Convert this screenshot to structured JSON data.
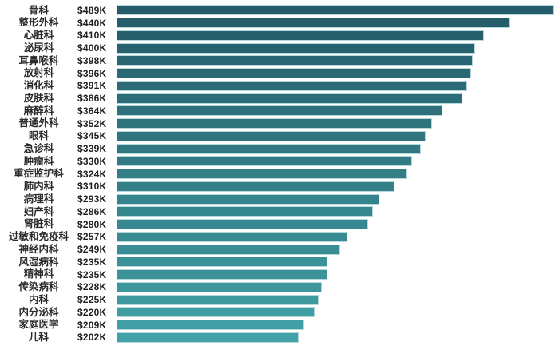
{
  "page": {
    "background_color": "#ffffff"
  },
  "chart_data": {
    "type": "bar",
    "orientation": "horizontal",
    "title": "",
    "xlabel": "",
    "ylabel": "",
    "xlim": [
      0,
      489
    ],
    "grid": false,
    "legend": false,
    "categories": [
      "骨科",
      "整形外科",
      "心脏科",
      "泌尿科",
      "耳鼻喉科",
      "放射科",
      "消化科",
      "皮肤科",
      "麻醉科",
      "普通外科",
      "眼科",
      "急诊科",
      "肿瘤科",
      "重症监护科",
      "肺内科",
      "病理科",
      "妇产科",
      "肾脏科",
      "过敏和免疫科",
      "神经内科",
      "风湿病科",
      "精神科",
      "传染病科",
      "内科",
      "内分泌科",
      "家庭医学",
      "儿科"
    ],
    "values": [
      489,
      440,
      410,
      400,
      398,
      396,
      391,
      386,
      364,
      352,
      345,
      339,
      330,
      324,
      310,
      293,
      286,
      280,
      257,
      249,
      235,
      235,
      228,
      225,
      220,
      209,
      202
    ],
    "value_labels": [
      "$489K",
      "$440K",
      "$410K",
      "$400K",
      "$398K",
      "$396K",
      "$391K",
      "$386K",
      "$364K",
      "$352K",
      "$345K",
      "$339K",
      "$330K",
      "$324K",
      "$310K",
      "$293K",
      "$286K",
      "$280K",
      "$257K",
      "$249K",
      "$235K",
      "$235K",
      "$228K",
      "$225K",
      "$220K",
      "$209K",
      "$202K"
    ],
    "style": {
      "bar_color_top": "#255a68",
      "bar_color_bottom": "#41a1a6",
      "bar_border_color": "#b4d9dc",
      "label_text_color": "#2b2b2b",
      "value_text_color": "#1e1e1e"
    }
  }
}
